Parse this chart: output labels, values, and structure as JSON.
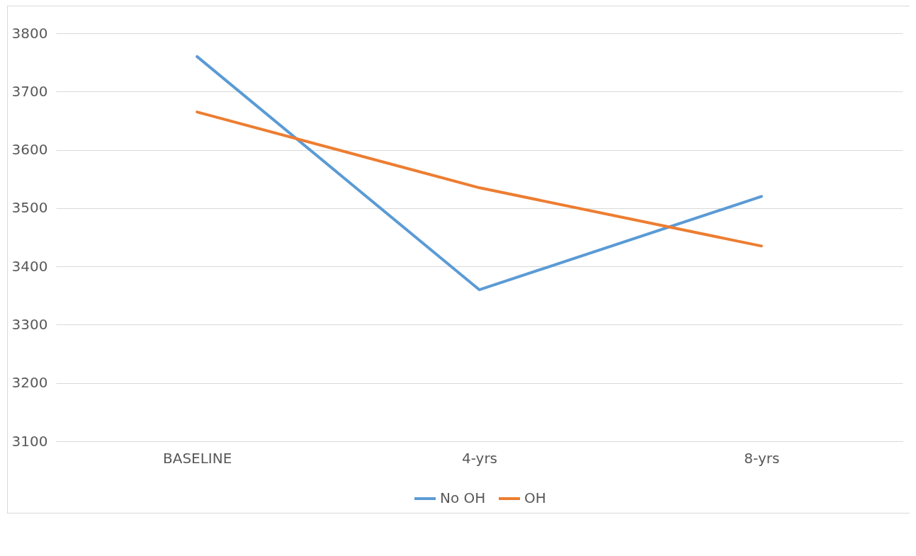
{
  "chart_data": {
    "type": "line",
    "categories": [
      "BASELINE",
      "4-yrs",
      "8-yrs"
    ],
    "series": [
      {
        "name": "No OH",
        "color": "#5b9bd5",
        "values": [
          3760,
          3360,
          3520
        ]
      },
      {
        "name": "OH",
        "color": "#ed7d31",
        "values": [
          3665,
          3535,
          3435
        ]
      }
    ],
    "ylim": [
      3100,
      3800
    ],
    "yticks": [
      3100,
      3200,
      3300,
      3400,
      3500,
      3600,
      3700,
      3800
    ],
    "grid": "y",
    "legend": "bottom"
  }
}
